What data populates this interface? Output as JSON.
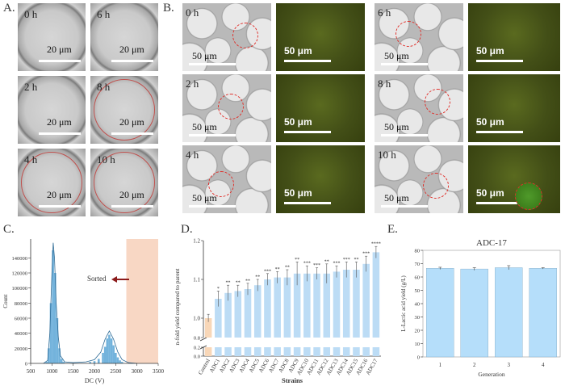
{
  "panel_labels": {
    "a": "A.",
    "b": "B.",
    "c": "C.",
    "d": "D.",
    "e": "E."
  },
  "panel_a": {
    "tiles": [
      {
        "time": "0 h",
        "scale": "20 μm",
        "ring": false
      },
      {
        "time": "6 h",
        "scale": "20 μm",
        "ring": false
      },
      {
        "time": "2 h",
        "scale": "20 μm",
        "ring": false
      },
      {
        "time": "8 h",
        "scale": "20 μm",
        "ring": true
      },
      {
        "time": "4 h",
        "scale": "20 μm",
        "ring": true
      },
      {
        "time": "10 h",
        "scale": "20 μm",
        "ring": true
      }
    ]
  },
  "panel_b": {
    "rows": [
      {
        "left_time": "0 h",
        "right_time": "6 h"
      },
      {
        "left_time": "2 h",
        "right_time": "8 h"
      },
      {
        "left_time": "4 h",
        "right_time": "10 h"
      }
    ],
    "scale": "50 μm"
  },
  "colors": {
    "bar": "#bcdcf5",
    "control": "#f8d7b8",
    "sorted_band": "#f8d7c4",
    "arrow": "#8b1a1a",
    "hist": "#5aa6d6",
    "gen_bar": "#b5defa"
  },
  "chart_data": [
    {
      "panel": "C",
      "type": "histogram",
      "xlabel": "DC (V)",
      "ylabel": "Count",
      "xlim": [
        500,
        3500
      ],
      "ylim": [
        0,
        165000
      ],
      "xticks": [
        500,
        1000,
        1500,
        2000,
        2500,
        3000,
        3500
      ],
      "yticks": [
        0,
        20000,
        40000,
        60000,
        80000,
        100000,
        120000,
        140000
      ],
      "ytick_labels": [
        "0",
        "20000",
        "40000",
        "60000",
        "80000",
        "100000",
        "120000",
        "140000"
      ],
      "annotation": "Sorted",
      "sorted_range": [
        2750,
        3500
      ],
      "bins": [
        [
          875,
          2000
        ],
        [
          925,
          20000
        ],
        [
          975,
          80000
        ],
        [
          1025,
          150000
        ],
        [
          1075,
          120000
        ],
        [
          1125,
          60000
        ],
        [
          1175,
          20000
        ],
        [
          1225,
          6000
        ],
        [
          1275,
          2000
        ],
        [
          1900,
          2000
        ],
        [
          2000,
          3000
        ],
        [
          2100,
          6000
        ],
        [
          2200,
          14000
        ],
        [
          2250,
          22000
        ],
        [
          2300,
          33000
        ],
        [
          2350,
          38000
        ],
        [
          2400,
          33000
        ],
        [
          2450,
          24000
        ],
        [
          2500,
          14000
        ],
        [
          2550,
          8000
        ],
        [
          2600,
          4000
        ],
        [
          2650,
          2000
        ]
      ],
      "fit": [
        [
          800,
          0
        ],
        [
          900,
          4000
        ],
        [
          950,
          40000
        ],
        [
          1000,
          120000
        ],
        [
          1030,
          160000
        ],
        [
          1060,
          140000
        ],
        [
          1100,
          80000
        ],
        [
          1150,
          35000
        ],
        [
          1200,
          10000
        ],
        [
          1300,
          2000
        ],
        [
          1500,
          1000
        ],
        [
          1800,
          2000
        ],
        [
          2000,
          5000
        ],
        [
          2150,
          15000
        ],
        [
          2250,
          32000
        ],
        [
          2350,
          43000
        ],
        [
          2450,
          32000
        ],
        [
          2550,
          15000
        ],
        [
          2650,
          5000
        ],
        [
          2800,
          1000
        ],
        [
          3000,
          0
        ]
      ]
    },
    {
      "panel": "D",
      "type": "bar",
      "categories": [
        "Control",
        "ADC1",
        "ADC2",
        "ADC3",
        "ADC4",
        "ADC5",
        "ADC6",
        "ADC7",
        "ADC8",
        "ADC9",
        "ADC10",
        "ADC11",
        "ADC12",
        "ADC13",
        "ADC14",
        "ADC15",
        "ADC16",
        "ADC17"
      ],
      "values": [
        1.0,
        1.05,
        1.065,
        1.07,
        1.075,
        1.085,
        1.1,
        1.105,
        1.105,
        1.115,
        1.115,
        1.115,
        1.115,
        1.12,
        1.125,
        1.125,
        1.14,
        1.17
      ],
      "errors": [
        0.01,
        0.02,
        0.02,
        0.015,
        0.015,
        0.015,
        0.015,
        0.015,
        0.02,
        0.03,
        0.02,
        0.015,
        0.025,
        0.015,
        0.02,
        0.02,
        0.02,
        0.015
      ],
      "significance": [
        "",
        "*",
        "**",
        "**",
        "**",
        "**",
        "***",
        "**",
        "**",
        "**",
        "***",
        "***",
        "**",
        "***",
        "***",
        "**",
        "***",
        "****"
      ],
      "xlabel": "Strains",
      "ylabel": "n-fold yield compared to parent",
      "yticks_upper": [
        "1.2",
        "1.1",
        "1.0"
      ],
      "yticks_lower": [
        "0.8",
        "0.2",
        "0.0"
      ]
    },
    {
      "panel": "E",
      "type": "bar",
      "title": "ADC-17",
      "categories": [
        "1",
        "2",
        "3",
        "4"
      ],
      "values": [
        66.5,
        66.0,
        67.0,
        66.5
      ],
      "errors": [
        0.8,
        1.0,
        1.5,
        0.5
      ],
      "xlabel": "Generation",
      "ylabel": "L-Lactic acid yield (g/L)",
      "ylim": [
        0,
        80
      ],
      "yticks": [
        0,
        10,
        20,
        30,
        40,
        50,
        60,
        70,
        80
      ]
    }
  ]
}
